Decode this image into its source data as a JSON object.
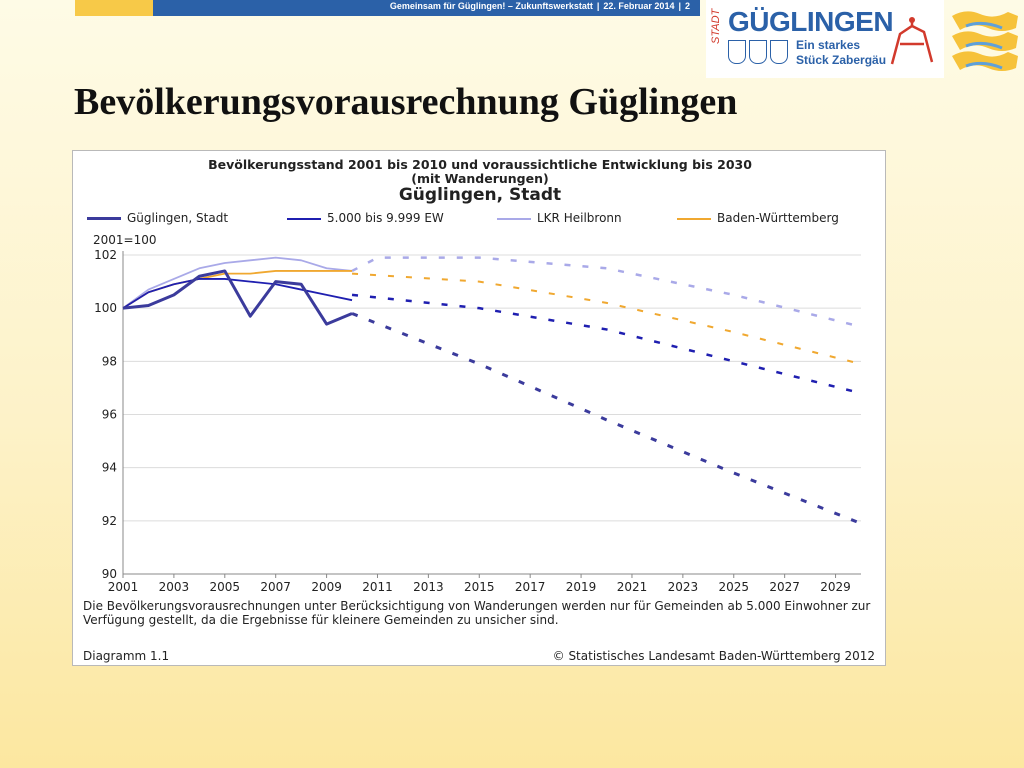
{
  "header": {
    "event": "Gemeinsam für Güglingen! – Zukunftswerkstatt",
    "date": "22. Februar 2014",
    "page": "2"
  },
  "logo": {
    "stadt": "STADT",
    "name": "GÜGLINGEN",
    "tagline1": "Ein starkes",
    "tagline2": "Stück Zabergäu"
  },
  "slide": {
    "title": "Bevölkerungsvorausrechnung Güglingen"
  },
  "colors": {
    "gueglingen": "#3b3b9c",
    "ew": "#1f1fb0",
    "lkr": "#a9a9e8",
    "bw": "#f0a830",
    "topbar_blue": "#2b61a8",
    "topbar_yellow": "#f7c948"
  },
  "chart_data": {
    "type": "line",
    "title": "Bevölkerungsstand 2001 bis 2010 und voraussichtliche Entwicklung bis 2030",
    "subtitle": "(mit Wanderungen)",
    "subtitle2": "Güglingen, Stadt",
    "ylabel": "2001=100",
    "xlim": [
      2001,
      2030
    ],
    "ylim": [
      90,
      102
    ],
    "xticks": [
      "2001",
      "2003",
      "2005",
      "2007",
      "2009",
      "2011",
      "2013",
      "2015",
      "2017",
      "2019",
      "2021",
      "2023",
      "2025",
      "2027",
      "2029"
    ],
    "yticks": [
      "90",
      "92",
      "94",
      "96",
      "98",
      "100",
      "102"
    ],
    "grid": "horizontal",
    "legend": "top",
    "series": [
      {
        "name": "Güglingen, Stadt",
        "actual": {
          "x": [
            2001,
            2002,
            2003,
            2004,
            2005,
            2006,
            2007,
            2008,
            2009,
            2010
          ],
          "y": [
            100.0,
            100.1,
            100.5,
            101.2,
            101.4,
            99.7,
            101.0,
            100.9,
            99.4,
            99.8
          ]
        },
        "projection": {
          "x": [
            2010,
            2015,
            2020,
            2025,
            2030
          ],
          "y": [
            99.8,
            97.9,
            95.8,
            93.8,
            91.9
          ]
        }
      },
      {
        "name": "5.000 bis 9.999 EW",
        "actual": {
          "x": [
            2001,
            2002,
            2003,
            2004,
            2005,
            2006,
            2007,
            2008,
            2009,
            2010
          ],
          "y": [
            100.0,
            100.6,
            100.9,
            101.1,
            101.1,
            101.0,
            100.9,
            100.7,
            100.5,
            100.3
          ]
        },
        "projection": {
          "x": [
            2010,
            2015,
            2020,
            2025,
            2030
          ],
          "y": [
            100.5,
            100.0,
            99.2,
            98.0,
            96.8
          ]
        }
      },
      {
        "name": "LKR Heilbronn",
        "actual": {
          "x": [
            2001,
            2002,
            2003,
            2004,
            2005,
            2006,
            2007,
            2008,
            2009,
            2010
          ],
          "y": [
            100.0,
            100.7,
            101.1,
            101.5,
            101.7,
            101.8,
            101.9,
            101.8,
            101.5,
            101.4
          ]
        },
        "projection": {
          "x": [
            2010,
            2011,
            2015,
            2020,
            2025,
            2030
          ],
          "y": [
            101.4,
            101.9,
            101.9,
            101.5,
            100.5,
            99.3
          ]
        }
      },
      {
        "name": "Baden-Württemberg",
        "actual": {
          "x": [
            2001,
            2002,
            2003,
            2004,
            2005,
            2006,
            2007,
            2008,
            2009,
            2010
          ],
          "y": [
            100.0,
            100.6,
            100.9,
            101.1,
            101.3,
            101.3,
            101.4,
            101.4,
            101.4,
            101.4
          ]
        },
        "projection": {
          "x": [
            2010,
            2015,
            2020,
            2025,
            2030
          ],
          "y": [
            101.3,
            101.0,
            100.2,
            99.1,
            97.9
          ]
        }
      }
    ],
    "footnote": "Die Bevölkerungsvorausrechnungen unter Berücksichtigung von Wanderungen werden nur für Gemeinden ab 5.000 Einwohner zur Verfügung gestellt, da die Ergebnisse für kleinere Gemeinden zu unsicher sind.",
    "diagram_label": "Diagramm 1.1",
    "source": "© Statistisches Landesamt Baden-Württemberg 2012"
  }
}
